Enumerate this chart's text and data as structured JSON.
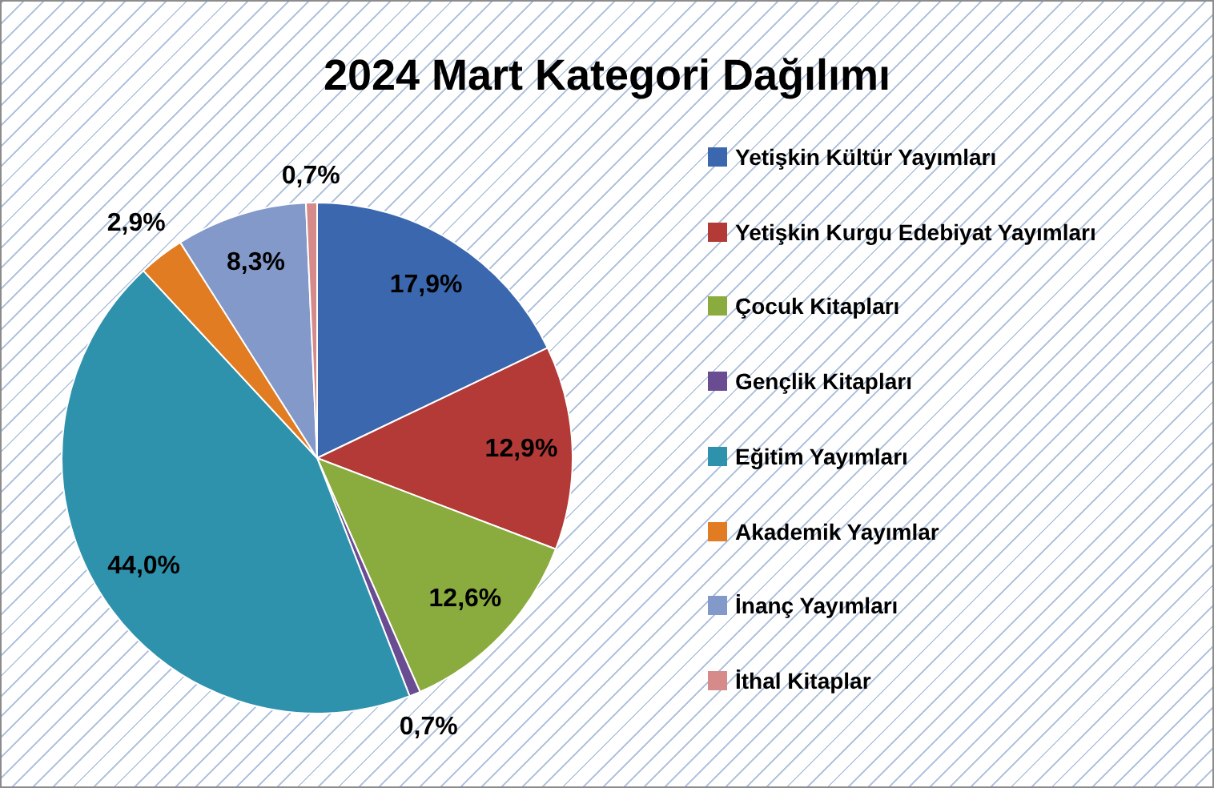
{
  "chart_data": {
    "type": "pie",
    "title": "2024 Mart Kategori Dağılımı",
    "categories": [
      "Yetişkin Kültür Yayımları",
      "Yetişkin Kurgu Edebiyat Yayımları",
      "Çocuk Kitapları",
      "Gençlik Kitapları",
      "Eğitim Yayımları",
      "Akademik Yayımlar",
      "İnanç Yayımları",
      "İthal Kitaplar"
    ],
    "values": [
      17.9,
      12.9,
      12.6,
      0.7,
      44.0,
      2.9,
      8.3,
      0.7
    ],
    "colors": [
      "#3a67ad",
      "#b33a36",
      "#8aab3e",
      "#6a4c93",
      "#2f92ad",
      "#e27c22",
      "#8299c9",
      "#d68b8a"
    ],
    "value_labels": [
      "17,9%",
      "12,9%",
      "12,6%",
      "0,7%",
      "44,0%",
      "2,9%",
      "8,3%",
      "0,7%"
    ],
    "legend": "right"
  }
}
